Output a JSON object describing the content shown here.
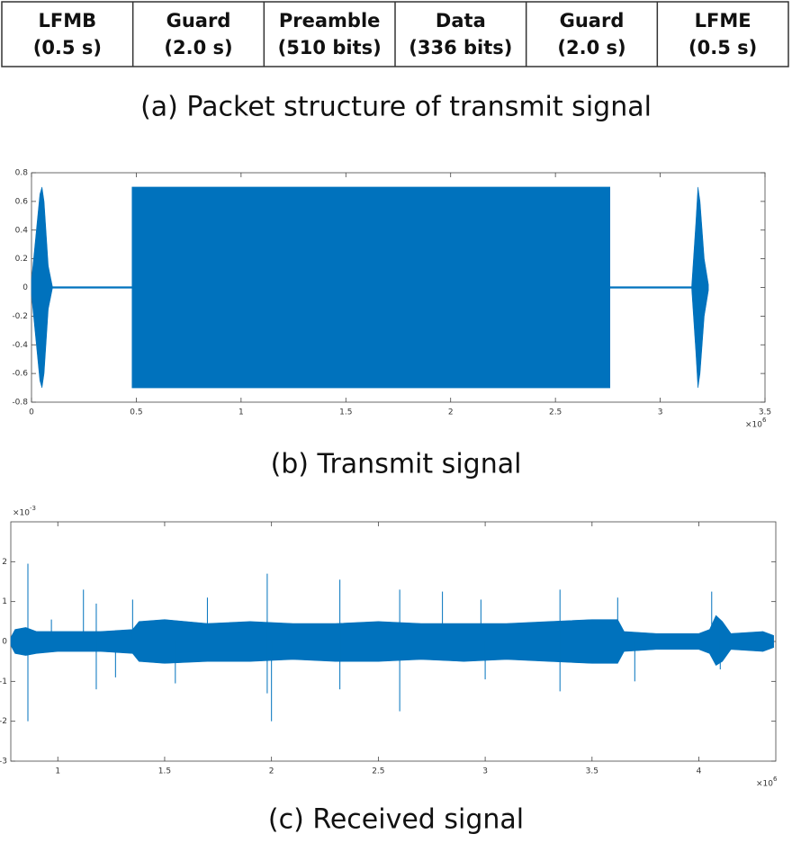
{
  "table": {
    "cells": [
      {
        "name": "LFMB",
        "detail": "(0.5 s)"
      },
      {
        "name": "Guard",
        "detail": "(2.0 s)"
      },
      {
        "name": "Preamble",
        "detail": "(510 bits)"
      },
      {
        "name": "Data",
        "detail": "(336 bits)"
      },
      {
        "name": "Guard",
        "detail": "(2.0 s)"
      },
      {
        "name": "LFME",
        "detail": "(0.5 s)"
      }
    ],
    "caption": "(a) Packet structure of transmit signal"
  },
  "chart_data": [
    {
      "type": "band",
      "caption": "(b) Transmit signal",
      "color": "#0072bd",
      "x": [
        0,
        0.02,
        0.04,
        0.05,
        0.06,
        0.08,
        0.1,
        0.48,
        0.48,
        2.76,
        2.76,
        3.15,
        3.17,
        3.18,
        3.19,
        3.21,
        3.23
      ],
      "upper": [
        0.05,
        0.35,
        0.65,
        0.7,
        0.6,
        0.15,
        0.005,
        0.005,
        0.7,
        0.7,
        0.005,
        0.005,
        0.45,
        0.7,
        0.6,
        0.2,
        0.02
      ],
      "lower": [
        -0.05,
        -0.35,
        -0.65,
        -0.7,
        -0.6,
        -0.15,
        -0.005,
        -0.005,
        -0.7,
        -0.7,
        -0.005,
        -0.005,
        -0.45,
        -0.7,
        -0.6,
        -0.2,
        -0.02
      ],
      "xlim": [
        0,
        3.5
      ],
      "xticks": [
        0,
        0.5,
        1,
        1.5,
        2,
        2.5,
        3,
        3.5
      ],
      "ylim": [
        -0.8,
        0.8
      ],
      "yticks": [
        -0.8,
        -0.6,
        -0.4,
        -0.2,
        0,
        0.2,
        0.4,
        0.6,
        0.8
      ],
      "x_multiplier": "×10",
      "x_exponent": "6"
    },
    {
      "type": "band",
      "caption": "(c) Received signal",
      "color": "#0072bd",
      "x": [
        0.78,
        0.8,
        0.85,
        0.9,
        1.0,
        1.2,
        1.35,
        1.38,
        1.5,
        1.7,
        1.9,
        2.1,
        2.3,
        2.5,
        2.7,
        2.9,
        3.1,
        3.3,
        3.5,
        3.62,
        3.65,
        3.8,
        4.0,
        4.05,
        4.08,
        4.11,
        4.15,
        4.3,
        4.35
      ],
      "upper": [
        0.1,
        0.3,
        0.35,
        0.25,
        0.25,
        0.25,
        0.3,
        0.5,
        0.55,
        0.45,
        0.5,
        0.45,
        0.45,
        0.5,
        0.45,
        0.45,
        0.45,
        0.5,
        0.55,
        0.55,
        0.25,
        0.2,
        0.2,
        0.3,
        0.65,
        0.5,
        0.2,
        0.25,
        0.15
      ],
      "lower": [
        -0.1,
        -0.3,
        -0.35,
        -0.3,
        -0.25,
        -0.25,
        -0.3,
        -0.5,
        -0.55,
        -0.5,
        -0.5,
        -0.45,
        -0.5,
        -0.5,
        -0.45,
        -0.5,
        -0.45,
        -0.5,
        -0.55,
        -0.55,
        -0.25,
        -0.2,
        -0.2,
        -0.3,
        -0.6,
        -0.5,
        -0.2,
        -0.25,
        -0.15
      ],
      "spikes": {
        "x": [
          0.86,
          0.86,
          0.97,
          1.12,
          1.18,
          1.18,
          1.27,
          1.35,
          1.55,
          1.7,
          1.98,
          1.98,
          2.0,
          2.32,
          2.32,
          2.6,
          2.6,
          2.8,
          2.98,
          3.0,
          3.35,
          3.35,
          3.62,
          3.7,
          4.06,
          4.1
        ],
        "values": [
          1.95,
          -2.0,
          0.55,
          1.3,
          0.95,
          -1.2,
          -0.9,
          1.05,
          -1.05,
          1.1,
          1.7,
          -1.3,
          -2.0,
          1.55,
          -1.2,
          1.3,
          -1.75,
          1.25,
          1.05,
          -0.95,
          1.3,
          -1.25,
          1.1,
          -1.0,
          1.25,
          -0.7
        ]
      },
      "xlim": [
        0.78,
        4.36
      ],
      "xticks": [
        1,
        1.5,
        2,
        2.5,
        3,
        3.5,
        4
      ],
      "ylim": [
        -3,
        3
      ],
      "yticks": [
        -3,
        -2,
        -1,
        0,
        1,
        2
      ],
      "x_multiplier": "×10",
      "x_exponent": "6",
      "y_multiplier": "×10",
      "y_exponent": "-3"
    }
  ]
}
